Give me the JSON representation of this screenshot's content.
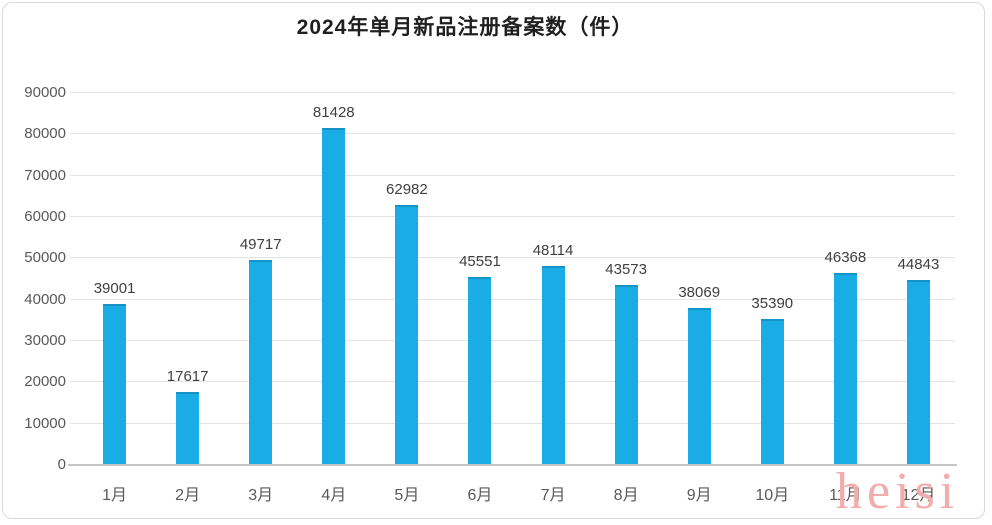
{
  "watermark": "heisi",
  "colors": {
    "bar": "#1aace4",
    "bar_top_edge": "#1493c8",
    "gridline": "#e3e3e3",
    "axis_line": "#c6c6c6",
    "title_text": "#1f1f1f",
    "data_label_text": "#404040",
    "axis_label_text": "#595959",
    "watermark_text": "#f2acac",
    "frame_border": "#d9d9d9"
  },
  "chart_data": {
    "type": "bar",
    "title": "2024年单月新品注册备案数（件）",
    "categories": [
      "1月",
      "2月",
      "3月",
      "4月",
      "5月",
      "6月",
      "7月",
      "8月",
      "9月",
      "10月",
      "11月",
      "12月"
    ],
    "values": [
      39001,
      17617,
      49717,
      81428,
      62982,
      45551,
      48114,
      43573,
      38069,
      35390,
      46368,
      44843
    ],
    "xlabel": "",
    "ylabel": "",
    "ylim": [
      0,
      90000
    ],
    "ytick_step": 10000,
    "ytick_labels": [
      "0",
      "10000",
      "20000",
      "30000",
      "40000",
      "50000",
      "60000",
      "70000",
      "80000",
      "90000"
    ],
    "grid": true,
    "data_labels": true,
    "legend": "none"
  }
}
